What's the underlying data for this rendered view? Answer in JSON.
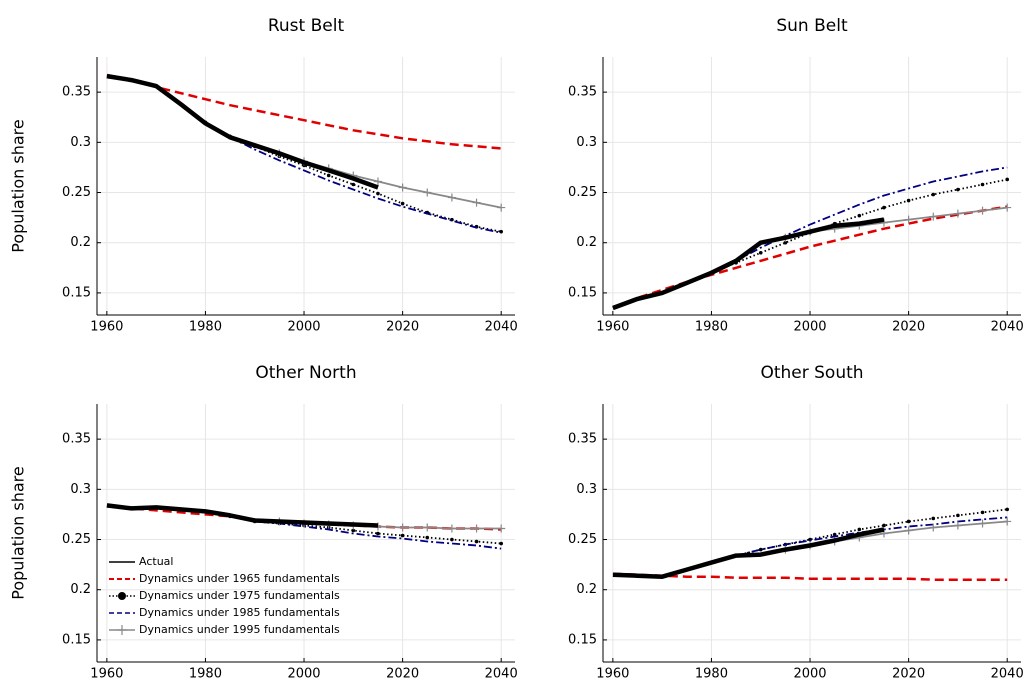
{
  "chart_data": [
    {
      "type": "line",
      "title": "Rust Belt",
      "ylabel": "Population share",
      "x": [
        1960,
        1965,
        1970,
        1975,
        1980,
        1985,
        1990,
        1995,
        2000,
        2005,
        2010,
        2015,
        2020,
        2025,
        2030,
        2035,
        2040
      ],
      "xlim": [
        1958,
        2042.8
      ],
      "ylim": [
        0.128,
        0.385
      ],
      "xticks": [
        1960,
        1980,
        2000,
        2020,
        2040
      ],
      "yticks": [
        0.15,
        0.2,
        0.25,
        0.3,
        0.35
      ],
      "grid": true,
      "series": [
        {
          "name": "Actual",
          "color": "#000000",
          "line_style": "solid",
          "values": [
            0.366,
            0.362,
            0.356,
            0.338,
            0.319,
            0.305,
            0.297,
            0.289,
            0.28,
            0.272,
            0.264,
            0.255,
            null,
            null,
            null,
            null,
            null
          ]
        },
        {
          "name": "Dynamics under 1965 fundamentals",
          "color": "#e00000",
          "line_style": "dashed",
          "values": [
            0.367,
            0.362,
            0.355,
            0.349,
            0.343,
            0.337,
            0.332,
            0.327,
            0.322,
            0.317,
            0.312,
            0.308,
            0.304,
            0.301,
            0.298,
            0.296,
            0.294
          ]
        },
        {
          "name": "Dynamics under 1975 fundamentals",
          "color": "#000000",
          "line_style": "dotted",
          "marker": "circle",
          "values": [
            null,
            null,
            null,
            0.338,
            0.32,
            0.306,
            0.296,
            0.286,
            0.277,
            0.267,
            0.258,
            0.249,
            0.239,
            0.23,
            0.223,
            0.216,
            0.211
          ]
        },
        {
          "name": "Dynamics under 1985 fundamentals",
          "color": "#000080",
          "line_style": "dashdot",
          "values": [
            null,
            null,
            null,
            null,
            null,
            0.305,
            0.293,
            0.282,
            0.272,
            0.262,
            0.253,
            0.244,
            0.236,
            0.229,
            0.222,
            0.215,
            0.21
          ]
        },
        {
          "name": "Dynamics under 1995 fundamentals",
          "color": "#888888",
          "line_style": "solid",
          "marker": "plus",
          "values": [
            null,
            null,
            null,
            null,
            null,
            null,
            null,
            0.289,
            0.281,
            0.274,
            0.267,
            0.261,
            0.255,
            0.25,
            0.245,
            0.24,
            0.235
          ]
        }
      ]
    },
    {
      "type": "line",
      "title": "Sun Belt",
      "x": [
        1960,
        1965,
        1970,
        1975,
        1980,
        1985,
        1990,
        1995,
        2000,
        2005,
        2010,
        2015,
        2020,
        2025,
        2030,
        2035,
        2040
      ],
      "xlim": [
        1958,
        2042.8
      ],
      "ylim": [
        0.128,
        0.385
      ],
      "xticks": [
        1960,
        1980,
        2000,
        2020,
        2040
      ],
      "yticks": [
        0.15,
        0.2,
        0.25,
        0.3,
        0.35
      ],
      "grid": true,
      "series": [
        {
          "name": "Actual",
          "color": "#000000",
          "line_style": "solid",
          "values": [
            0.135,
            0.144,
            0.15,
            0.16,
            0.17,
            0.182,
            0.2,
            0.205,
            0.211,
            0.217,
            0.219,
            0.223,
            null,
            null,
            null,
            null,
            null
          ]
        },
        {
          "name": "Dynamics under 1965 fundamentals",
          "color": "#e00000",
          "line_style": "dashed",
          "values": [
            0.135,
            0.145,
            0.153,
            0.161,
            0.168,
            0.175,
            0.182,
            0.189,
            0.196,
            0.202,
            0.208,
            0.214,
            0.219,
            0.224,
            0.228,
            0.232,
            0.236
          ]
        },
        {
          "name": "Dynamics under 1975 fundamentals",
          "color": "#000000",
          "line_style": "dotted",
          "marker": "circle",
          "values": [
            null,
            null,
            null,
            0.16,
            0.17,
            0.18,
            0.19,
            0.2,
            0.21,
            0.219,
            0.227,
            0.235,
            0.242,
            0.248,
            0.253,
            0.258,
            0.263
          ]
        },
        {
          "name": "Dynamics under 1985 fundamentals",
          "color": "#000080",
          "line_style": "dashdot",
          "values": [
            null,
            null,
            null,
            null,
            null,
            0.182,
            0.195,
            0.207,
            0.218,
            0.228,
            0.238,
            0.247,
            0.254,
            0.261,
            0.266,
            0.271,
            0.275
          ]
        },
        {
          "name": "Dynamics under 1995 fundamentals",
          "color": "#888888",
          "line_style": "solid",
          "marker": "plus",
          "values": [
            null,
            null,
            null,
            null,
            null,
            null,
            null,
            0.205,
            0.211,
            0.214,
            0.217,
            0.22,
            0.223,
            0.226,
            0.229,
            0.232,
            0.235
          ]
        }
      ]
    },
    {
      "type": "line",
      "title": "Other North",
      "ylabel": "Population share",
      "legend": "bottom left",
      "x": [
        1960,
        1965,
        1970,
        1975,
        1980,
        1985,
        1990,
        1995,
        2000,
        2005,
        2010,
        2015,
        2020,
        2025,
        2030,
        2035,
        2040
      ],
      "xlim": [
        1958,
        2042.8
      ],
      "ylim": [
        0.128,
        0.385
      ],
      "xticks": [
        1960,
        1980,
        2000,
        2020,
        2040
      ],
      "yticks": [
        0.15,
        0.2,
        0.25,
        0.3,
        0.35
      ],
      "grid": true,
      "series": [
        {
          "name": "Actual",
          "color": "#000000",
          "line_style": "solid",
          "values": [
            0.284,
            0.281,
            0.282,
            0.28,
            0.278,
            0.274,
            0.269,
            0.268,
            0.267,
            0.266,
            0.265,
            0.264,
            null,
            null,
            null,
            null,
            null
          ]
        },
        {
          "name": "Dynamics under 1965 fundamentals",
          "color": "#e00000",
          "line_style": "dashed",
          "values": [
            0.283,
            0.281,
            0.279,
            0.277,
            0.275,
            0.273,
            0.27,
            0.268,
            0.266,
            0.265,
            0.264,
            0.263,
            0.262,
            0.262,
            0.261,
            0.261,
            0.26
          ]
        },
        {
          "name": "Dynamics under 1975 fundamentals",
          "color": "#000000",
          "line_style": "dotted",
          "marker": "circle",
          "values": [
            null,
            null,
            null,
            0.28,
            0.278,
            0.273,
            0.268,
            0.266,
            0.264,
            0.262,
            0.259,
            0.256,
            0.254,
            0.252,
            0.25,
            0.248,
            0.246
          ]
        },
        {
          "name": "Dynamics under 1985 fundamentals",
          "color": "#000080",
          "line_style": "dashdot",
          "values": [
            null,
            null,
            null,
            null,
            null,
            0.274,
            0.268,
            0.266,
            0.263,
            0.26,
            0.256,
            0.253,
            0.251,
            0.248,
            0.246,
            0.244,
            0.241
          ]
        },
        {
          "name": "Dynamics under 1995 fundamentals",
          "color": "#888888",
          "line_style": "solid",
          "marker": "plus",
          "values": [
            null,
            null,
            null,
            null,
            null,
            null,
            null,
            0.268,
            0.266,
            0.265,
            0.264,
            0.263,
            0.262,
            0.262,
            0.261,
            0.261,
            0.261
          ]
        }
      ]
    },
    {
      "type": "line",
      "title": "Other South",
      "x": [
        1960,
        1965,
        1970,
        1975,
        1980,
        1985,
        1990,
        1995,
        2000,
        2005,
        2010,
        2015,
        2020,
        2025,
        2030,
        2035,
        2040
      ],
      "xlim": [
        1958,
        2042.8
      ],
      "ylim": [
        0.128,
        0.385
      ],
      "xticks": [
        1960,
        1980,
        2000,
        2020,
        2040
      ],
      "yticks": [
        0.15,
        0.2,
        0.25,
        0.3,
        0.35
      ],
      "grid": true,
      "series": [
        {
          "name": "Actual",
          "color": "#000000",
          "line_style": "solid",
          "values": [
            0.215,
            0.214,
            0.213,
            0.22,
            0.227,
            0.234,
            0.235,
            0.24,
            0.244,
            0.249,
            0.255,
            0.26,
            null,
            null,
            null,
            null,
            null
          ]
        },
        {
          "name": "Dynamics under 1965 fundamentals",
          "color": "#e00000",
          "line_style": "dashed",
          "values": [
            0.216,
            0.215,
            0.214,
            0.213,
            0.213,
            0.212,
            0.212,
            0.212,
            0.211,
            0.211,
            0.211,
            0.211,
            0.211,
            0.21,
            0.21,
            0.21,
            0.21
          ]
        },
        {
          "name": "Dynamics under 1975 fundamentals",
          "color": "#000000",
          "line_style": "dotted",
          "marker": "circle",
          "values": [
            null,
            null,
            null,
            0.22,
            0.227,
            0.234,
            0.24,
            0.245,
            0.25,
            0.255,
            0.26,
            0.264,
            0.268,
            0.271,
            0.274,
            0.277,
            0.28
          ]
        },
        {
          "name": "Dynamics under 1985 fundamentals",
          "color": "#000080",
          "line_style": "dashdot",
          "values": [
            null,
            null,
            null,
            null,
            null,
            0.234,
            0.24,
            0.245,
            0.249,
            0.253,
            0.257,
            0.26,
            0.263,
            0.265,
            0.268,
            0.27,
            0.272
          ]
        },
        {
          "name": "Dynamics under 1995 fundamentals",
          "color": "#888888",
          "line_style": "solid",
          "marker": "plus",
          "values": [
            null,
            null,
            null,
            null,
            null,
            null,
            null,
            0.24,
            0.244,
            0.248,
            0.252,
            0.256,
            0.259,
            0.262,
            0.264,
            0.266,
            0.268
          ]
        }
      ]
    }
  ]
}
